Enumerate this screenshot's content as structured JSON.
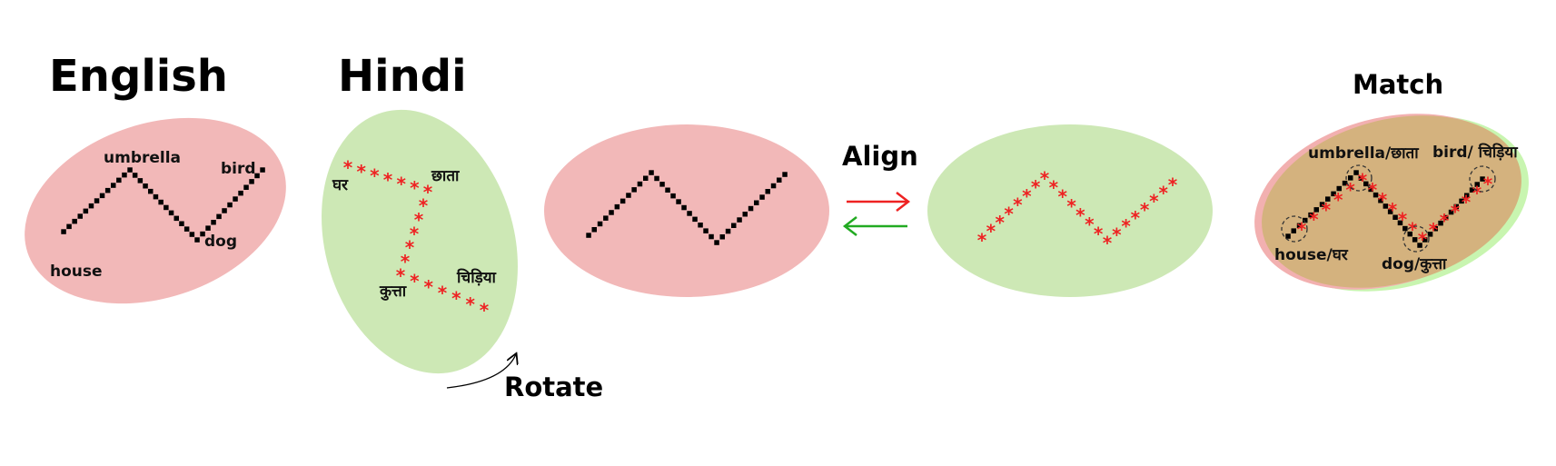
{
  "titles": {
    "english": "English",
    "hindi": "Hindi",
    "align": "Align",
    "rotate": "Rotate",
    "match": "Match"
  },
  "english_words": {
    "house": "house",
    "umbrella": "umbrella",
    "dog": "dog",
    "bird": "bird"
  },
  "hindi_words": {
    "house": "घर",
    "umbrella": "छाता",
    "dog": "कुत्ता",
    "bird": "चिड़िया"
  },
  "match_words": {
    "house": "house/घर",
    "umbrella": "umbrella/छाता",
    "dog": "dog/कुत्ता",
    "bird": "bird/ चिड़िया"
  },
  "colors": {
    "english_fill": "#f2b8b8",
    "hindi_fill": "#cde8b5",
    "match_fill": "#d4b27e",
    "star": "#ee2222",
    "dots": "#000000",
    "arrow_right": "#ee2222",
    "arrow_left": "#22aa22"
  },
  "icons": {
    "english_marker": "square-dot",
    "hindi_marker": "asterisk",
    "rotate": "curved-arrow-icon",
    "align_right": "right-arrow-icon",
    "align_left": "left-arrow-icon",
    "match_highlight": "dashed-circle-icon"
  }
}
